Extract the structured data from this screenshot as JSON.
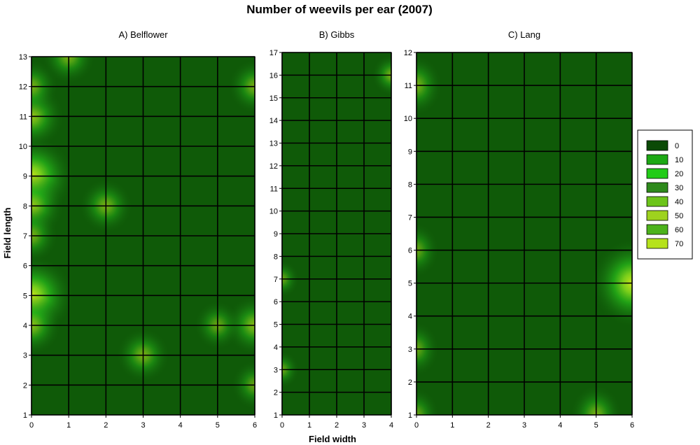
{
  "chart_data": {
    "type": "heatmap",
    "title": "Number of weevils per ear (2007)",
    "xlabel": "Field width",
    "ylabel": "Field length",
    "legend_placement": "right",
    "legend": [
      {
        "label": "0",
        "color": "#0b4a06"
      },
      {
        "label": "10",
        "color": "#1da815"
      },
      {
        "label": "20",
        "color": "#22cc18"
      },
      {
        "label": "30",
        "color": "#2e8a1c"
      },
      {
        "label": "40",
        "color": "#6cc41a"
      },
      {
        "label": "50",
        "color": "#9ed21e"
      },
      {
        "label": "60",
        "color": "#4cb21c"
      },
      {
        "label": "70",
        "color": "#b6e21c"
      }
    ],
    "panels": [
      {
        "title": "A) Belflower",
        "xlim": [
          0,
          6
        ],
        "ylim": [
          1,
          13
        ],
        "xticks": [
          "0",
          "1",
          "2",
          "3",
          "4",
          "5",
          "6"
        ],
        "yticks": [
          "1",
          "2",
          "3",
          "4",
          "5",
          "6",
          "7",
          "8",
          "9",
          "10",
          "11",
          "12",
          "13"
        ],
        "hotspots": [
          {
            "x": 0,
            "y": 9,
            "value": 70
          },
          {
            "x": 0,
            "y": 5,
            "value": 70
          },
          {
            "x": 0,
            "y": 11,
            "value": 40
          },
          {
            "x": 0,
            "y": 8,
            "value": 40
          },
          {
            "x": 0,
            "y": 4,
            "value": 30
          },
          {
            "x": 0,
            "y": 7,
            "value": 20
          },
          {
            "x": 0,
            "y": 12,
            "value": 20
          },
          {
            "x": 1,
            "y": 13,
            "value": 20
          },
          {
            "x": 2,
            "y": 8,
            "value": 20
          },
          {
            "x": 3,
            "y": 3,
            "value": 20
          },
          {
            "x": 6,
            "y": 4,
            "value": 30
          },
          {
            "x": 5,
            "y": 4,
            "value": 10
          },
          {
            "x": 6,
            "y": 12,
            "value": 20
          },
          {
            "x": 6,
            "y": 2,
            "value": 10
          }
        ]
      },
      {
        "title": "B) Gibbs",
        "xlim": [
          0,
          4
        ],
        "ylim": [
          1,
          17
        ],
        "xticks": [
          "0",
          "1",
          "2",
          "3",
          "4"
        ],
        "yticks": [
          "1",
          "2",
          "3",
          "4",
          "5",
          "6",
          "7",
          "8",
          "9",
          "10",
          "11",
          "12",
          "13",
          "14",
          "15",
          "16",
          "17"
        ],
        "hotspots": [
          {
            "x": 4,
            "y": 16,
            "value": 20
          },
          {
            "x": 0,
            "y": 7,
            "value": 10
          },
          {
            "x": 0,
            "y": 3,
            "value": 10
          }
        ]
      },
      {
        "title": "C) Lang",
        "xlim": [
          0,
          6
        ],
        "ylim": [
          1,
          12
        ],
        "xticks": [
          "0",
          "1",
          "2",
          "3",
          "4",
          "5",
          "6"
        ],
        "yticks": [
          "1",
          "2",
          "3",
          "4",
          "5",
          "6",
          "7",
          "8",
          "9",
          "10",
          "11",
          "12"
        ],
        "hotspots": [
          {
            "x": 6,
            "y": 5,
            "value": 70
          },
          {
            "x": 0,
            "y": 11,
            "value": 20
          },
          {
            "x": 0,
            "y": 6,
            "value": 10
          },
          {
            "x": 0,
            "y": 3,
            "value": 10
          },
          {
            "x": 0,
            "y": 1,
            "value": 10
          },
          {
            "x": 5,
            "y": 1,
            "value": 20
          }
        ]
      }
    ]
  }
}
